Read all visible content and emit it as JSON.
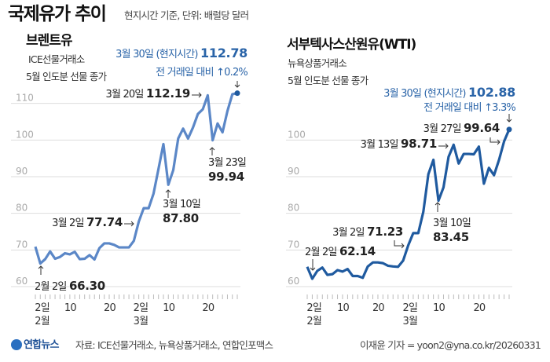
{
  "header": {
    "title": "국제유가 추이",
    "subtitle": "현지시간 기준, 단위: 배럴당 달러"
  },
  "footer": {
    "logo": "연합뉴스",
    "source": "자료: ICE선물거래소, 뉴욕상품거래소, 연합인포맥스",
    "credit": "이재윤 기자 = yoon2@yna.co.kr/20260331"
  },
  "colors": {
    "brent": "#5b87c7",
    "wti": "#1f5a9f",
    "annotation": "#2a64a8",
    "grid": "#dddddd"
  },
  "chart_data": [
    {
      "type": "line",
      "title": "브렌트유",
      "subtitle1": "ICE선물거래소",
      "subtitle2": "5월 인도분 선물 종가",
      "ylim": [
        60,
        113
      ],
      "yticks": [
        60,
        70,
        80,
        90,
        100,
        110
      ],
      "xtick_labels": [
        {
          "index": 1,
          "day": "2일",
          "month": "2월"
        },
        {
          "index": 7,
          "day": "10"
        },
        {
          "index": 15,
          "day": "20"
        },
        {
          "index": 21,
          "day": "2일",
          "month": "3월"
        },
        {
          "index": 27,
          "day": "10"
        },
        {
          "index": 35,
          "day": "20"
        }
      ],
      "values": [
        70.9,
        66.3,
        67.5,
        69.6,
        67.6,
        68.1,
        69.1,
        68.8,
        69.5,
        67.5,
        67.6,
        68.6,
        67.4,
        70.5,
        71.8,
        71.8,
        71.4,
        70.7,
        70.7,
        70.7,
        72.5,
        77.74,
        81.4,
        81.4,
        85.4,
        92.1,
        98.9,
        87.8,
        91.8,
        100.4,
        103.1,
        100.4,
        103.4,
        107.1,
        108.4,
        112.19,
        99.94,
        104.5,
        102.1,
        107.9,
        112.5,
        112.78
      ],
      "annotations": {
        "latest_date": "3월 30일 (현지시간)",
        "latest_value": "112.78",
        "change": "전 거래일 대비 ↑0.2%",
        "a1_date": "3월 20일",
        "a1_value": "112.19",
        "a2_date": "3월 23일",
        "a2_value": "99.94",
        "a3_date": "3월 10일",
        "a3_value": "87.80",
        "a4_date": "3월 2일",
        "a4_value": "77.74",
        "a5_date": "2월 2일",
        "a5_value": "66.30"
      }
    },
    {
      "type": "line",
      "title": "서부텍사스산원유(WTI)",
      "subtitle1": "뉴욕상품거래소",
      "subtitle2": "5월 인도분 선물 종가",
      "ylim": [
        60,
        113
      ],
      "yticks": [
        60,
        70,
        80,
        90,
        100
      ],
      "xtick_labels": [
        {
          "index": 1,
          "day": "2일",
          "month": "2월"
        },
        {
          "index": 7,
          "day": "10"
        },
        {
          "index": 14,
          "day": "20"
        },
        {
          "index": 20,
          "day": "2일",
          "month": "3월"
        },
        {
          "index": 26,
          "day": "10"
        },
        {
          "index": 34,
          "day": "20"
        }
      ],
      "values": [
        65.4,
        62.14,
        64.3,
        65.2,
        63.2,
        63.4,
        64.5,
        64.1,
        64.8,
        62.9,
        62.9,
        62.4,
        65.5,
        66.6,
        66.6,
        66.4,
        65.7,
        65.5,
        65.4,
        67.1,
        71.23,
        74.6,
        74.6,
        80.4,
        90.7,
        94.6,
        83.45,
        87.1,
        95.4,
        98.71,
        93.6,
        96.2,
        96.2,
        96.1,
        98.2,
        88.1,
        92.4,
        90.4,
        94.6,
        99.64,
        102.88
      ],
      "annotations": {
        "latest_date": "3월 30일 (현지시간)",
        "latest_value": "102.88",
        "change": "전 거래일 대비 ↑3.3%",
        "a1_date": "3월 27일",
        "a1_value": "99.64",
        "a2_date": "3월 13일",
        "a2_value": "98.71",
        "a3_date": "3월 10일",
        "a3_value": "83.45",
        "a4_date": "3월 2일",
        "a4_value": "71.23",
        "a5_date": "2월 2일",
        "a5_value": "62.14"
      }
    }
  ]
}
